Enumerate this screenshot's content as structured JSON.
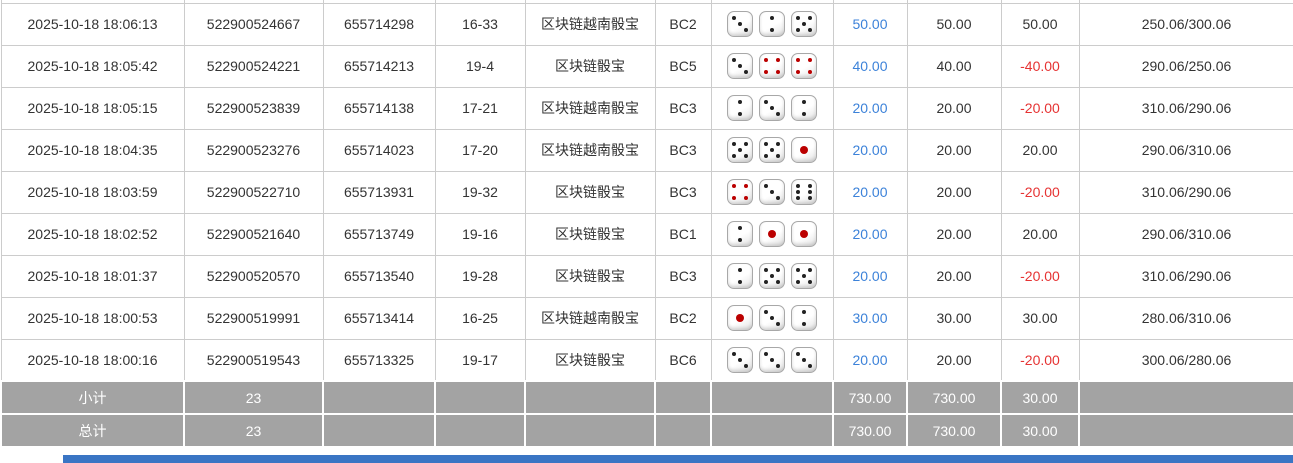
{
  "table": {
    "rows": [
      {
        "time": "2025-10-18 18:06:13",
        "order_no": "522900524667",
        "round_no": "655714298",
        "result": "16-33",
        "game": "区块链越南骰宝",
        "bet_type": "BC2",
        "dice": [
          3,
          2,
          5
        ],
        "bet": "50.00",
        "valid": "50.00",
        "win_loss": "50.00",
        "balance": "250.06/300.06"
      },
      {
        "time": "2025-10-18 18:05:42",
        "order_no": "522900524221",
        "round_no": "655714213",
        "result": "19-4",
        "game": "区块链骰宝",
        "bet_type": "BC5",
        "dice": [
          3,
          4,
          4
        ],
        "bet": "40.00",
        "valid": "40.00",
        "win_loss": "-40.00",
        "balance": "290.06/250.06"
      },
      {
        "time": "2025-10-18 18:05:15",
        "order_no": "522900523839",
        "round_no": "655714138",
        "result": "17-21",
        "game": "区块链越南骰宝",
        "bet_type": "BC3",
        "dice": [
          2,
          3,
          2
        ],
        "bet": "20.00",
        "valid": "20.00",
        "win_loss": "-20.00",
        "balance": "310.06/290.06"
      },
      {
        "time": "2025-10-18 18:04:35",
        "order_no": "522900523276",
        "round_no": "655714023",
        "result": "17-20",
        "game": "区块链越南骰宝",
        "bet_type": "BC3",
        "dice": [
          5,
          5,
          1
        ],
        "bet": "20.00",
        "valid": "20.00",
        "win_loss": "20.00",
        "balance": "290.06/310.06"
      },
      {
        "time": "2025-10-18 18:03:59",
        "order_no": "522900522710",
        "round_no": "655713931",
        "result": "19-32",
        "game": "区块链骰宝",
        "bet_type": "BC3",
        "dice": [
          4,
          3,
          6
        ],
        "bet": "20.00",
        "valid": "20.00",
        "win_loss": "-20.00",
        "balance": "310.06/290.06"
      },
      {
        "time": "2025-10-18 18:02:52",
        "order_no": "522900521640",
        "round_no": "655713749",
        "result": "19-16",
        "game": "区块链骰宝",
        "bet_type": "BC1",
        "dice": [
          2,
          1,
          1
        ],
        "bet": "20.00",
        "valid": "20.00",
        "win_loss": "20.00",
        "balance": "290.06/310.06"
      },
      {
        "time": "2025-10-18 18:01:37",
        "order_no": "522900520570",
        "round_no": "655713540",
        "result": "19-28",
        "game": "区块链骰宝",
        "bet_type": "BC3",
        "dice": [
          2,
          5,
          5
        ],
        "bet": "20.00",
        "valid": "20.00",
        "win_loss": "-20.00",
        "balance": "310.06/290.06"
      },
      {
        "time": "2025-10-18 18:00:53",
        "order_no": "522900519991",
        "round_no": "655713414",
        "result": "16-25",
        "game": "区块链越南骰宝",
        "bet_type": "BC2",
        "dice": [
          1,
          3,
          2
        ],
        "bet": "30.00",
        "valid": "30.00",
        "win_loss": "30.00",
        "balance": "280.06/310.06"
      },
      {
        "time": "2025-10-18 18:00:16",
        "order_no": "522900519543",
        "round_no": "655713325",
        "result": "19-17",
        "game": "区块链骰宝",
        "bet_type": "BC6",
        "dice": [
          3,
          3,
          3
        ],
        "bet": "20.00",
        "valid": "20.00",
        "win_loss": "-20.00",
        "balance": "300.06/280.06"
      }
    ]
  },
  "footer": {
    "subtotal_label": "小计",
    "total_label": "总计",
    "subtotal": {
      "count": "23",
      "bet": "730.00",
      "valid": "730.00",
      "win_loss": "30.00"
    },
    "total": {
      "count": "23",
      "bet": "730.00",
      "valid": "730.00",
      "win_loss": "30.00"
    }
  },
  "colors": {
    "accent_blue": "#3c82d9",
    "negative_red": "#e63333",
    "footer_bg": "#a3a3a3",
    "footer_text": "#ffffff",
    "border": "#cccccc",
    "text": "#333333",
    "pip_black": "#222222",
    "pip_red": "#bb0000",
    "bottom_bar_blue": "#3a75c4"
  }
}
